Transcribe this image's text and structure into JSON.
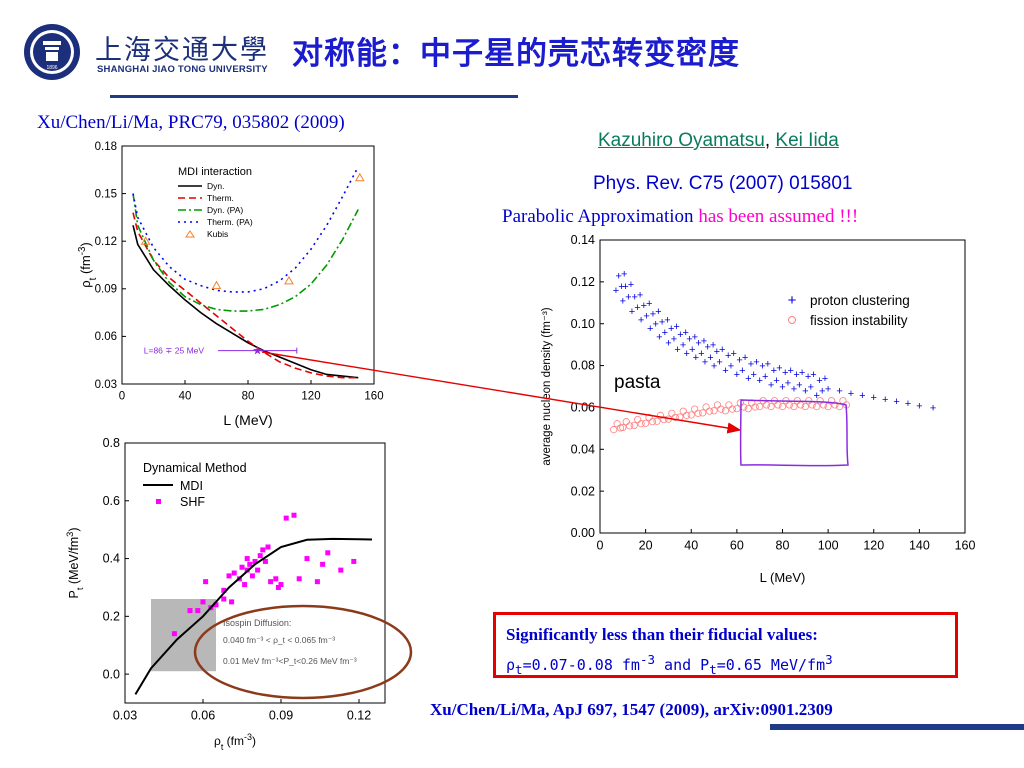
{
  "header": {
    "university_cn": "上海交通大學",
    "university_en": "SHANGHAI JIAO TONG UNIVERSITY",
    "logo_year": "1896",
    "slide_title": "对称能：中子星的壳芯转变密度"
  },
  "refs": {
    "top_left": "Xu/Chen/Li/Ma, PRC79, 035802 (2009)",
    "author1": "Kazuhiro Oyamatsu",
    "author_sep": ", ",
    "author2": "Kei Iida",
    "journal": "Phys. Rev. C75 (2007) 015801",
    "parabolic_a": "Parabolic Approximation ",
    "parabolic_b": "has been assumed !!!",
    "bottom": "Xu/Chen/Li/Ma, ApJ 697, 1547 (2009), arXiv:0901.2309"
  },
  "callout": {
    "line1": "Significantly less than their fiducial values:",
    "rho_sym": "ρ",
    "rho_sub": "t",
    "rho_val": "=0.07-0.08 fm",
    "rho_exp": "-3",
    "and_p": " and P",
    "p_sub": "t",
    "p_val": "=0.65 MeV/fm",
    "p_exp": "3"
  },
  "pasta_label": "pasta",
  "colors": {
    "title_blue": "#1c1ccf",
    "ref_blue": "#0000cc",
    "link_green": "#0b7b5d",
    "highlight_pink": "#ff00cc",
    "callout_red": "#e60000",
    "brand_navy": "#1f3b87",
    "pasta_box": "#8a2be2"
  },
  "chart_data": [
    {
      "type": "line",
      "xlabel": "L (MeV)",
      "ylabel": "ρ_t (fm^-3)",
      "xlim": [
        0,
        160
      ],
      "ylim": [
        0.03,
        0.18
      ],
      "xticks": [
        "0",
        "40",
        "80",
        "120",
        "160"
      ],
      "yticks": [
        "0.03",
        "0.06",
        "0.09",
        "0.12",
        "0.15",
        "0.18"
      ],
      "legend_title": "MDI interaction",
      "legend_position": "top-center",
      "annotation": "L=86 ∓ 25 MeV",
      "marker_point": {
        "x": 86,
        "y": 0.051,
        "xerr_low": 25,
        "xerr_high": 25
      },
      "series": [
        {
          "name": "Dyn.",
          "style": "solid",
          "color": "#000000",
          "x": [
            7,
            10,
            20,
            30,
            40,
            50,
            60,
            70,
            80,
            90,
            100,
            110,
            120,
            130,
            140,
            150
          ],
          "y": [
            0.13,
            0.118,
            0.102,
            0.092,
            0.083,
            0.075,
            0.068,
            0.062,
            0.056,
            0.051,
            0.047,
            0.043,
            0.039,
            0.036,
            0.035,
            0.034
          ]
        },
        {
          "name": "Therm.",
          "style": "dashed",
          "color": "#e60000",
          "x": [
            7,
            10,
            20,
            30,
            40,
            50,
            60,
            70,
            80,
            90,
            100,
            110,
            120,
            130,
            140,
            150
          ],
          "y": [
            0.138,
            0.126,
            0.108,
            0.097,
            0.089,
            0.081,
            0.073,
            0.065,
            0.057,
            0.05,
            0.044,
            0.04,
            0.037,
            0.035,
            0.034,
            0.034
          ]
        },
        {
          "name": "Dyn. (PA)",
          "style": "dashdot",
          "color": "#009900",
          "x": [
            7,
            10,
            20,
            30,
            40,
            50,
            60,
            70,
            80,
            90,
            100,
            110,
            120,
            130,
            140,
            150
          ],
          "y": [
            0.15,
            0.13,
            0.108,
            0.094,
            0.085,
            0.08,
            0.077,
            0.076,
            0.076,
            0.077,
            0.08,
            0.085,
            0.093,
            0.105,
            0.121,
            0.14
          ]
        },
        {
          "name": "Therm. (PA)",
          "style": "dotted",
          "color": "#0000ff",
          "x": [
            7,
            10,
            20,
            30,
            40,
            50,
            60,
            70,
            80,
            90,
            100,
            110,
            120,
            130,
            140,
            150
          ],
          "y": [
            0.15,
            0.135,
            0.116,
            0.104,
            0.096,
            0.092,
            0.089,
            0.088,
            0.088,
            0.09,
            0.095,
            0.103,
            0.115,
            0.13,
            0.148,
            0.167
          ]
        },
        {
          "name": "Kubis",
          "style": "marker-triangle",
          "color": "#f08030",
          "x": [
            15,
            60,
            106,
            151
          ],
          "y": [
            0.12,
            0.092,
            0.095,
            0.16
          ]
        }
      ]
    },
    {
      "type": "scatter",
      "xlabel": "ρ_t (fm^-3)",
      "ylabel": "P_t (MeV/fm^3)",
      "xlim": [
        0.03,
        0.13
      ],
      "ylim": [
        -0.1,
        0.8
      ],
      "xticks": [
        "0.03",
        "0.06",
        "0.09",
        "0.12"
      ],
      "yticks": [
        "0.0",
        "0.2",
        "0.4",
        "0.6",
        "0.8"
      ],
      "legend_title": "Dynamical Method",
      "legend_position": "top-left",
      "annotation_title": "Isospin Diffusion:",
      "annotation_line1": "0.040 fm⁻³ < ρ_t < 0.065 fm⁻³",
      "annotation_line2": "0.01 MeV fm⁻³<P_t<0.26 MeV fm⁻³",
      "shaded_region": {
        "x": [
          0.04,
          0.065
        ],
        "y": [
          0.01,
          0.26
        ]
      },
      "series": [
        {
          "name": "MDI",
          "style": "line",
          "color": "#000000",
          "x": [
            0.034,
            0.04,
            0.05,
            0.06,
            0.07,
            0.08,
            0.09,
            0.1,
            0.11,
            0.12,
            0.125
          ],
          "y": [
            -0.07,
            0.02,
            0.12,
            0.2,
            0.3,
            0.38,
            0.44,
            0.465,
            0.468,
            0.467,
            0.466
          ]
        },
        {
          "name": "SHF",
          "style": "marker-square",
          "color": "#ff00ff",
          "x": [
            0.049,
            0.055,
            0.058,
            0.06,
            0.061,
            0.063,
            0.065,
            0.068,
            0.07,
            0.072,
            0.074,
            0.075,
            0.076,
            0.077,
            0.078,
            0.079,
            0.08,
            0.081,
            0.082,
            0.083,
            0.084,
            0.085,
            0.086,
            0.088,
            0.09,
            0.092,
            0.095,
            0.097,
            0.1,
            0.104,
            0.106,
            0.108,
            0.113,
            0.118,
            0.068,
            0.071,
            0.077,
            0.089
          ],
          "y": [
            0.14,
            0.22,
            0.22,
            0.25,
            0.32,
            0.23,
            0.24,
            0.29,
            0.34,
            0.35,
            0.33,
            0.37,
            0.31,
            0.36,
            0.38,
            0.34,
            0.39,
            0.36,
            0.41,
            0.43,
            0.39,
            0.44,
            0.32,
            0.33,
            0.31,
            0.54,
            0.55,
            0.33,
            0.4,
            0.32,
            0.38,
            0.42,
            0.36,
            0.39,
            0.26,
            0.25,
            0.4,
            0.3
          ]
        }
      ]
    },
    {
      "type": "scatter",
      "xlabel": "L (MeV)",
      "ylabel": "average nucleon density (fm⁻³)",
      "xlim": [
        0,
        160
      ],
      "ylim": [
        0,
        0.14
      ],
      "xticks": [
        "0",
        "20",
        "40",
        "60",
        "80",
        "100",
        "120",
        "140",
        "160"
      ],
      "yticks": [
        "0.00",
        "0.02",
        "0.04",
        "0.06",
        "0.08",
        "0.10",
        "0.12",
        "0.14"
      ],
      "legend_position": "top-right",
      "series": [
        {
          "name": "proton clustering",
          "style": "marker-plus",
          "color": "#0000dd",
          "x": [
            7,
            10,
            14,
            18,
            22,
            26,
            30,
            34,
            38,
            42,
            46,
            50,
            55,
            60,
            65,
            70,
            75,
            80,
            85,
            90,
            95,
            100,
            105,
            110,
            115,
            120,
            125,
            130,
            135,
            140,
            146
          ],
          "y": [
            0.12,
            0.115,
            0.11,
            0.106,
            0.102,
            0.098,
            0.095,
            0.092,
            0.09,
            0.088,
            0.086,
            0.084,
            0.082,
            0.08,
            0.078,
            0.077,
            0.075,
            0.074,
            0.073,
            0.072,
            0.07,
            0.069,
            0.068,
            0.067,
            0.066,
            0.065,
            0.064,
            0.063,
            0.062,
            0.061,
            0.06
          ]
        },
        {
          "name": "fission instability",
          "style": "marker-circle",
          "color": "#ff8080",
          "x": [
            6,
            10,
            15,
            20,
            25,
            30,
            35,
            40,
            45,
            50,
            55,
            60,
            65,
            70,
            75,
            80,
            85,
            90,
            95,
            100,
            105
          ],
          "y": [
            0.051,
            0.052,
            0.053,
            0.054,
            0.055,
            0.056,
            0.057,
            0.058,
            0.059,
            0.06,
            0.06,
            0.061,
            0.061,
            0.062,
            0.062,
            0.062,
            0.062,
            0.062,
            0.062,
            0.062,
            0.062
          ]
        }
      ]
    }
  ]
}
